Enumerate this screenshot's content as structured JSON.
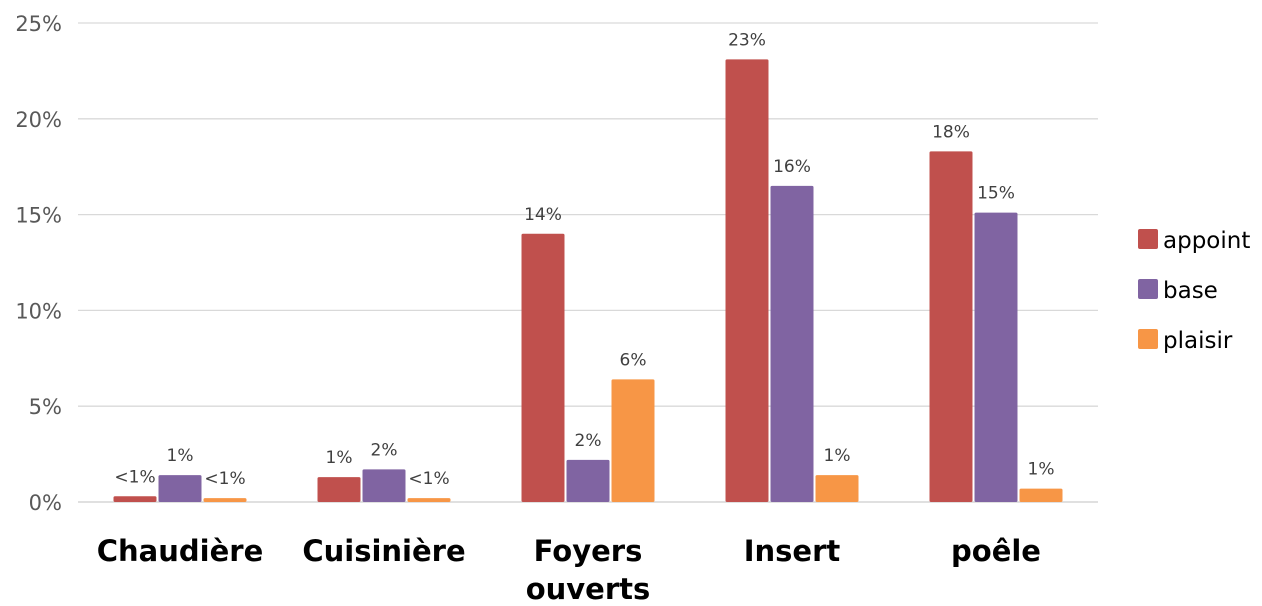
{
  "chart_data": {
    "type": "bar",
    "categories": [
      [
        "Chaudière"
      ],
      [
        "Cuisinière"
      ],
      [
        "Foyers",
        "ouverts"
      ],
      [
        "Insert"
      ],
      [
        "poêle"
      ]
    ],
    "series": [
      {
        "name": "appoint",
        "color": "#c0504d",
        "values": [
          0.3,
          1.3,
          14.0,
          23.1,
          18.3
        ],
        "labels": [
          "<1%",
          "1%",
          "14%",
          "23%",
          "18%"
        ]
      },
      {
        "name": "base",
        "color": "#8064a2",
        "values": [
          1.4,
          1.7,
          2.2,
          16.5,
          15.1
        ],
        "labels": [
          "1%",
          "2%",
          "2%",
          "16%",
          "15%"
        ]
      },
      {
        "name": "plaisir",
        "color": "#f79646",
        "values": [
          0.2,
          0.2,
          6.4,
          1.4,
          0.7
        ],
        "labels": [
          "<1%",
          "<1%",
          "6%",
          "1%",
          "1%"
        ]
      }
    ],
    "yticks": [
      "0%",
      "5%",
      "10%",
      "15%",
      "20%",
      "25%"
    ],
    "ylim": [
      0,
      25
    ],
    "grid": true,
    "legend_position": "right",
    "gridline_color": "#d9d9d9"
  }
}
